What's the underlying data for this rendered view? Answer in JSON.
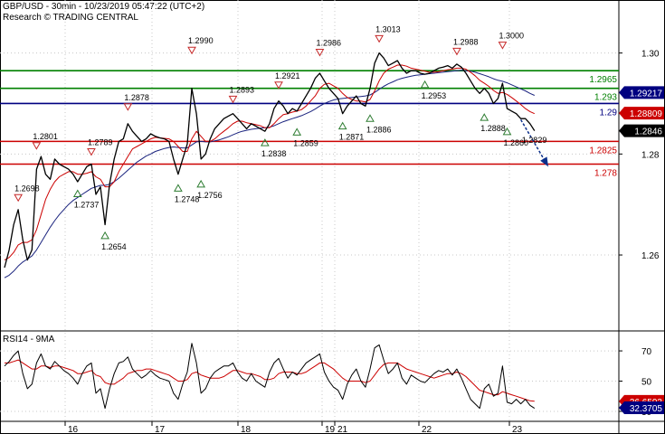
{
  "header": {
    "title": "GBP/USD - 30min - 10/23/2019 05:47:22 (UTC+2)",
    "source": "Research © TRADING CENTRAL"
  },
  "colors": {
    "price": "#000000",
    "ma_fast": "#cc0000",
    "ma_slow": "#1a237e",
    "resistance": "#008000",
    "pivot": "#000080",
    "support": "#cc0000",
    "arrow": "#0b2f8a"
  },
  "chart_data": [
    {
      "type": "line",
      "name": "price-panel",
      "y_ticks": [
        1.26,
        1.28,
        1.3
      ],
      "ylim": [
        1.2455,
        1.3105
      ],
      "x_labels": [
        "16",
        "17",
        "18",
        "19",
        "21",
        "22",
        "23"
      ],
      "grid": true,
      "horizontal_levels": [
        {
          "value": 1.2965,
          "label": "1.2965",
          "role": "resistance"
        },
        {
          "value": 1.293,
          "label": "1.293",
          "role": "resistance"
        },
        {
          "value": 1.29,
          "label": "1.29",
          "role": "pivot"
        },
        {
          "value": 1.2825,
          "label": "1.2825",
          "role": "support"
        },
        {
          "value": 1.278,
          "label": "1.278",
          "role": "support"
        }
      ],
      "price_tags": [
        {
          "value": 1.29217,
          "label": "1.29217",
          "style": "blue"
        },
        {
          "value": 1.28809,
          "label": "1.28809",
          "style": "red"
        },
        {
          "value": 1.2846,
          "label": "1.2846",
          "style": "black"
        }
      ],
      "annotations": [
        {
          "label": "1.2698",
          "x": 3,
          "y": 1.2698,
          "kind": "high"
        },
        {
          "label": "1.2801",
          "x": 7,
          "y": 1.2801,
          "kind": "high"
        },
        {
          "label": "1.2737",
          "x": 16,
          "y": 1.2737,
          "kind": "low"
        },
        {
          "label": "1.2789",
          "x": 19,
          "y": 1.2789,
          "kind": "high"
        },
        {
          "label": "1.2654",
          "x": 22,
          "y": 1.2654,
          "kind": "low"
        },
        {
          "label": "1.2878",
          "x": 27,
          "y": 1.2878,
          "kind": "high"
        },
        {
          "label": "1.2748",
          "x": 38,
          "y": 1.2748,
          "kind": "low"
        },
        {
          "label": "1.2990",
          "x": 41,
          "y": 1.299,
          "kind": "high"
        },
        {
          "label": "1.2756",
          "x": 43,
          "y": 1.2756,
          "kind": "low"
        },
        {
          "label": "1.2893",
          "x": 50,
          "y": 1.2893,
          "kind": "high"
        },
        {
          "label": "1.2838",
          "x": 57,
          "y": 1.2838,
          "kind": "low"
        },
        {
          "label": "1.2921",
          "x": 60,
          "y": 1.2921,
          "kind": "high"
        },
        {
          "label": "1.2859",
          "x": 64,
          "y": 1.2859,
          "kind": "low"
        },
        {
          "label": "1.2986",
          "x": 69,
          "y": 1.2986,
          "kind": "high"
        },
        {
          "label": "1.2871",
          "x": 74,
          "y": 1.2871,
          "kind": "low"
        },
        {
          "label": "1.2886",
          "x": 80,
          "y": 1.2886,
          "kind": "low"
        },
        {
          "label": "1.3013",
          "x": 82,
          "y": 1.3013,
          "kind": "high"
        },
        {
          "label": "1.2953",
          "x": 92,
          "y": 1.2953,
          "kind": "low"
        },
        {
          "label": "1.2988",
          "x": 99,
          "y": 1.2988,
          "kind": "high"
        },
        {
          "label": "1.2888",
          "x": 105,
          "y": 1.2888,
          "kind": "low"
        },
        {
          "label": "1.3000",
          "x": 109,
          "y": 1.3,
          "kind": "high"
        },
        {
          "label": "1.2860",
          "x": 110,
          "y": 1.286,
          "kind": "low"
        },
        {
          "label": "1.2829",
          "x": 116,
          "y": 1.2829,
          "kind": "target"
        }
      ],
      "x": [
        0,
        1,
        2,
        3,
        4,
        5,
        6,
        7,
        8,
        9,
        10,
        11,
        12,
        13,
        14,
        15,
        16,
        17,
        18,
        19,
        20,
        21,
        22,
        23,
        24,
        25,
        26,
        27,
        28,
        29,
        30,
        31,
        32,
        33,
        34,
        35,
        36,
        37,
        38,
        39,
        40,
        41,
        42,
        43,
        44,
        45,
        46,
        47,
        48,
        49,
        50,
        51,
        52,
        53,
        54,
        55,
        56,
        57,
        58,
        59,
        60,
        61,
        62,
        63,
        64,
        65,
        66,
        67,
        68,
        69,
        70,
        71,
        72,
        73,
        74,
        75,
        76,
        77,
        78,
        79,
        80,
        81,
        82,
        83,
        84,
        85,
        86,
        87,
        88,
        89,
        90,
        91,
        92,
        93,
        94,
        95,
        96,
        97,
        98,
        99,
        100,
        101,
        102,
        103,
        104,
        105,
        106,
        107,
        108,
        109,
        110,
        111,
        112,
        113,
        114,
        115,
        116
      ],
      "series": [
        {
          "role": "price",
          "values": [
            1.2575,
            1.261,
            1.266,
            1.269,
            1.263,
            1.259,
            1.261,
            1.277,
            1.2795,
            1.276,
            1.275,
            1.279,
            1.278,
            1.2775,
            1.277,
            1.276,
            1.2745,
            1.276,
            1.2775,
            1.278,
            1.272,
            1.2735,
            1.266,
            1.274,
            1.279,
            1.2825,
            1.283,
            1.286,
            1.2845,
            1.2835,
            1.2825,
            1.283,
            1.284,
            1.2835,
            1.2832,
            1.283,
            1.2825,
            1.279,
            1.276,
            1.279,
            1.282,
            1.293,
            1.288,
            1.279,
            1.28,
            1.283,
            1.285,
            1.286,
            1.287,
            1.2875,
            1.288,
            1.287,
            1.286,
            1.285,
            1.286,
            1.2855,
            1.285,
            1.2845,
            1.286,
            1.289,
            1.2905,
            1.2895,
            1.288,
            1.289,
            1.2885,
            1.29,
            1.2915,
            1.293,
            1.295,
            1.296,
            1.2945,
            1.293,
            1.292,
            1.291,
            1.288,
            1.2895,
            1.2905,
            1.2915,
            1.29,
            1.2895,
            1.293,
            1.298,
            1.3,
            1.299,
            1.2975,
            1.298,
            1.2985,
            1.297,
            1.296,
            1.2965,
            1.2965,
            1.296,
            1.2958,
            1.296,
            1.2965,
            1.297,
            1.2972,
            1.2975,
            1.297,
            1.2978,
            1.2972,
            1.296,
            1.2945,
            1.293,
            1.292,
            1.293,
            1.292,
            1.29,
            1.291,
            1.294,
            1.289,
            1.2885,
            1.288,
            1.287,
            1.287,
            1.286,
            1.2846
          ]
        },
        {
          "role": "ma_fast",
          "values": [
            1.259,
            1.2595,
            1.2605,
            1.262,
            1.2625,
            1.2625,
            1.263,
            1.265,
            1.268,
            1.271,
            1.273,
            1.2745,
            1.2755,
            1.276,
            1.2765,
            1.2765,
            1.276,
            1.276,
            1.2762,
            1.2765,
            1.2755,
            1.275,
            1.2735,
            1.2735,
            1.2745,
            1.2765,
            1.278,
            1.2795,
            1.281,
            1.2815,
            1.282,
            1.2825,
            1.283,
            1.2833,
            1.2832,
            1.2831,
            1.283,
            1.2825,
            1.2815,
            1.2805,
            1.2805,
            1.283,
            1.2845,
            1.2835,
            1.2825,
            1.2825,
            1.283,
            1.2838,
            1.2845,
            1.2852,
            1.286,
            1.2865,
            1.2865,
            1.2862,
            1.286,
            1.2858,
            1.2856,
            1.2852,
            1.2852,
            1.286,
            1.287,
            1.2878,
            1.288,
            1.2883,
            1.2885,
            1.2888,
            1.2895,
            1.2905,
            1.2915,
            1.293,
            1.2938,
            1.294,
            1.2935,
            1.293,
            1.292,
            1.2912,
            1.2908,
            1.2905,
            1.2905,
            1.2903,
            1.2908,
            1.2925,
            1.2945,
            1.296,
            1.2968,
            1.2972,
            1.2976,
            1.2976,
            1.2974,
            1.297,
            1.2968,
            1.2966,
            1.2964,
            1.2962,
            1.2962,
            1.2963,
            1.2965,
            1.2967,
            1.2968,
            1.297,
            1.297,
            1.2968,
            1.2962,
            1.2955,
            1.2946,
            1.294,
            1.2934,
            1.2926,
            1.292,
            1.2922,
            1.2918,
            1.2912,
            1.2905,
            1.2898,
            1.289,
            1.2884,
            1.288
          ]
        },
        {
          "role": "ma_slow",
          "values": [
            1.2555,
            1.256,
            1.2568,
            1.2578,
            1.2586,
            1.2592,
            1.2598,
            1.261,
            1.2625,
            1.264,
            1.2655,
            1.2668,
            1.268,
            1.269,
            1.27,
            1.2708,
            1.2714,
            1.272,
            1.2726,
            1.2732,
            1.2735,
            1.2738,
            1.2738,
            1.274,
            1.2745,
            1.2752,
            1.276,
            1.2768,
            1.2776,
            1.2784,
            1.279,
            1.2796,
            1.28,
            1.2805,
            1.2808,
            1.2811,
            1.2813,
            1.2814,
            1.2813,
            1.2812,
            1.2812,
            1.2818,
            1.2824,
            1.2825,
            1.2824,
            1.2824,
            1.2826,
            1.2828,
            1.2831,
            1.2834,
            1.2838,
            1.2842,
            1.2845,
            1.2847,
            1.2849,
            1.285,
            1.2851,
            1.2852,
            1.2853,
            1.2856,
            1.286,
            1.2864,
            1.2867,
            1.287,
            1.2873,
            1.2876,
            1.288,
            1.2884,
            1.2889,
            1.2895,
            1.29,
            1.2904,
            1.2907,
            1.2909,
            1.291,
            1.2911,
            1.2912,
            1.2913,
            1.2914,
            1.2915,
            1.2917,
            1.2922,
            1.2928,
            1.2934,
            1.2939,
            1.2943,
            1.2947,
            1.295,
            1.2952,
            1.2954,
            1.2956,
            1.2957,
            1.2958,
            1.2959,
            1.296,
            1.2961,
            1.2962,
            1.2963,
            1.2964,
            1.2965,
            1.2966,
            1.2965,
            1.2964,
            1.2962,
            1.2959,
            1.2956,
            1.2953,
            1.2949,
            1.2946,
            1.2944,
            1.2941,
            1.2937,
            1.2933,
            1.2929,
            1.2925,
            1.292,
            1.2916
          ]
        }
      ],
      "forecast_arrow": {
        "from": [
          113,
          1.2868
        ],
        "to": [
          119,
          1.2775
        ]
      }
    },
    {
      "type": "line",
      "name": "rsi-panel",
      "title": "RSI14 - 9MA",
      "ylim": [
        24,
        82
      ],
      "y_ticks": [
        30,
        50,
        70
      ],
      "grid": true,
      "price_tags": [
        {
          "value": 36.6593,
          "label": "36.6593",
          "style": "red"
        },
        {
          "value": 32.3705,
          "label": "32.3705",
          "style": "blue"
        }
      ],
      "series": [
        {
          "role": "rsi",
          "values": [
            60,
            63,
            67,
            70,
            55,
            45,
            48,
            62,
            68,
            60,
            58,
            63,
            60,
            57,
            55,
            52,
            48,
            55,
            60,
            62,
            42,
            45,
            32,
            45,
            55,
            62,
            63,
            66,
            58,
            55,
            52,
            54,
            57,
            54,
            52,
            51,
            50,
            42,
            38,
            48,
            56,
            75,
            62,
            42,
            45,
            52,
            56,
            58,
            60,
            60,
            62,
            56,
            52,
            50,
            55,
            50,
            48,
            46,
            56,
            62,
            65,
            58,
            52,
            56,
            54,
            58,
            62,
            64,
            66,
            68,
            56,
            50,
            46,
            44,
            38,
            48,
            54,
            58,
            50,
            46,
            58,
            72,
            74,
            64,
            55,
            58,
            62,
            52,
            48,
            54,
            52,
            50,
            49,
            52,
            55,
            57,
            56,
            58,
            54,
            58,
            52,
            45,
            38,
            35,
            32,
            45,
            48,
            40,
            42,
            60,
            36,
            35,
            38,
            35,
            38,
            34,
            32
          ]
        },
        {
          "role": "rsi_ma",
          "values": [
            62,
            62,
            63,
            64,
            62,
            60,
            58,
            58,
            60,
            60,
            59,
            60,
            60,
            59,
            58,
            57,
            55,
            55,
            56,
            57,
            54,
            53,
            49,
            48,
            48,
            50,
            52,
            55,
            56,
            57,
            57,
            58,
            58,
            57,
            56,
            55,
            54,
            52,
            50,
            50,
            51,
            55,
            56,
            54,
            53,
            52,
            52,
            52,
            53,
            55,
            57,
            57,
            56,
            55,
            55,
            54,
            53,
            51,
            51,
            52,
            55,
            56,
            56,
            56,
            55,
            55,
            56,
            58,
            60,
            62,
            62,
            60,
            58,
            55,
            52,
            50,
            50,
            50,
            50,
            49,
            50,
            54,
            58,
            61,
            62,
            62,
            62,
            60,
            58,
            57,
            56,
            55,
            54,
            53,
            52,
            53,
            54,
            55,
            55,
            56,
            55,
            53,
            50,
            47,
            44,
            43,
            42,
            41,
            41,
            43,
            42,
            41,
            40,
            39,
            38,
            37,
            36.7
          ]
        }
      ]
    }
  ]
}
